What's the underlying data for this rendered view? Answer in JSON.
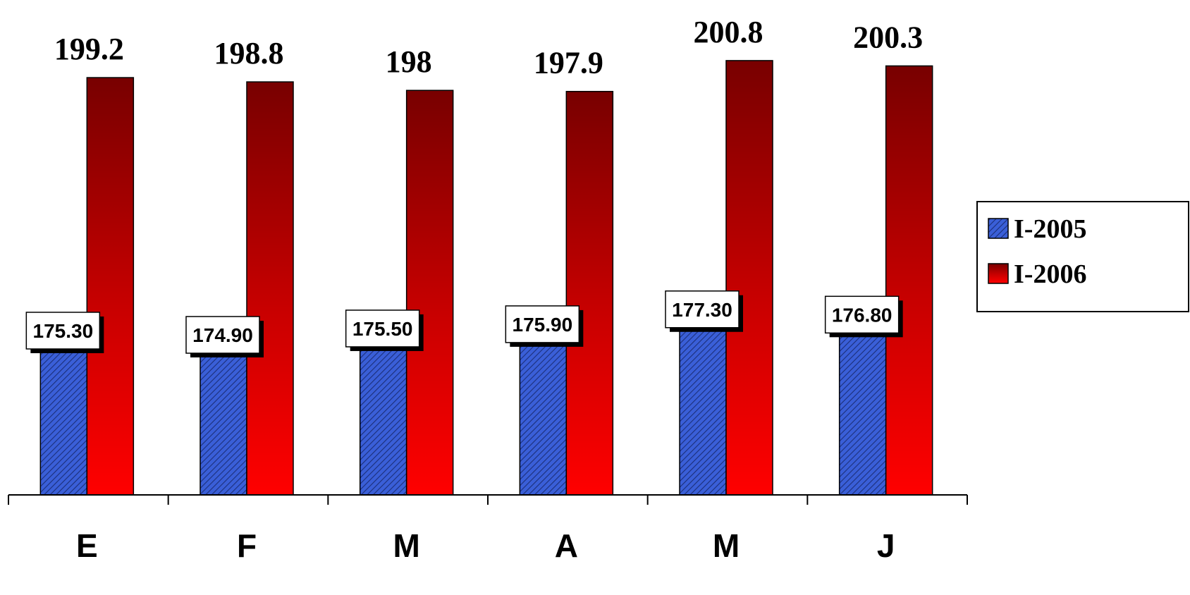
{
  "chart_data": {
    "type": "bar",
    "categories": [
      "E",
      "F",
      "M",
      "A",
      "M",
      "J"
    ],
    "series": [
      {
        "name": "I-2005",
        "values": [
          175.3,
          174.9,
          175.5,
          175.9,
          177.3,
          176.8
        ],
        "labels": [
          "175.30",
          "174.90",
          "175.50",
          "175.90",
          "177.30",
          "176.80"
        ],
        "color": "#3a5fd8"
      },
      {
        "name": "I-2006",
        "values": [
          199.2,
          198.8,
          198,
          197.9,
          200.8,
          200.3
        ],
        "labels": [
          "199.2",
          "198.8",
          "198",
          "197.9",
          "200.8",
          "200.3"
        ],
        "color": "#e00000"
      }
    ],
    "title": "",
    "xlabel": "",
    "ylabel": "",
    "ylim": [
      160,
      201.4
    ],
    "grid": false,
    "legend": "right"
  }
}
